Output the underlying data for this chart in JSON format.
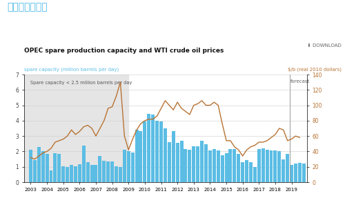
{
  "title_cn": "价格上涨的能力",
  "title_en": "OPEC spare production capacity and WTI crude oil prices",
  "ylabel_left": "spare capacity (million barrels per day)",
  "ylabel_right": "$/b (real 2010 dollars)",
  "download_text": "⬇ DOWNLOAD",
  "annotation": "Spare capacity < 2.5 million barrels per day",
  "forecast_text": "forecast",
  "bar_color": "#5bbde4",
  "line_color": "#b87333",
  "shading_color": "#e5e5e5",
  "background_color": "#ffffff",
  "bar_data_x": [
    2003.0,
    2003.25,
    2003.5,
    2003.75,
    2004.0,
    2004.25,
    2004.5,
    2004.75,
    2005.0,
    2005.25,
    2005.5,
    2005.75,
    2006.0,
    2006.25,
    2006.5,
    2006.75,
    2007.0,
    2007.25,
    2007.5,
    2007.75,
    2008.0,
    2008.25,
    2008.5,
    2008.75,
    2009.0,
    2009.25,
    2009.5,
    2009.75,
    2010.0,
    2010.25,
    2010.5,
    2010.75,
    2011.0,
    2011.25,
    2011.5,
    2011.75,
    2012.0,
    2012.25,
    2012.5,
    2012.75,
    2013.0,
    2013.25,
    2013.5,
    2013.75,
    2014.0,
    2014.25,
    2014.5,
    2014.75,
    2015.0,
    2015.25,
    2015.5,
    2015.75,
    2016.0,
    2016.25,
    2016.5,
    2016.75,
    2017.0,
    2017.25,
    2017.5,
    2017.75,
    2018.0,
    2018.25,
    2018.5,
    2018.75,
    2019.0,
    2019.25,
    2019.5,
    2019.75
  ],
  "bar_data_y": [
    2.1,
    1.45,
    2.3,
    2.0,
    1.85,
    0.75,
    1.9,
    1.85,
    1.05,
    1.0,
    1.1,
    1.05,
    1.15,
    2.4,
    1.3,
    1.1,
    1.1,
    1.7,
    1.4,
    1.35,
    1.35,
    1.05,
    1.0,
    2.1,
    2.0,
    1.95,
    3.4,
    3.3,
    3.95,
    4.45,
    4.4,
    4.0,
    3.95,
    3.5,
    2.6,
    3.3,
    2.55,
    2.7,
    2.15,
    2.1,
    2.35,
    2.35,
    2.7,
    2.45,
    2.05,
    2.15,
    2.05,
    1.75,
    1.9,
    2.15,
    2.15,
    1.85,
    1.3,
    1.45,
    1.3,
    1.0,
    2.15,
    2.2,
    2.1,
    2.05,
    2.05,
    2.0,
    1.5,
    1.85,
    1.1,
    1.2,
    1.25,
    1.2
  ],
  "oil_price_x": [
    2003.0,
    2003.25,
    2003.5,
    2003.75,
    2004.0,
    2004.25,
    2004.5,
    2004.75,
    2005.0,
    2005.25,
    2005.5,
    2005.75,
    2006.0,
    2006.25,
    2006.5,
    2006.75,
    2007.0,
    2007.25,
    2007.5,
    2007.75,
    2008.0,
    2008.25,
    2008.5,
    2008.75,
    2009.0,
    2009.25,
    2009.5,
    2009.75,
    2010.0,
    2010.25,
    2010.5,
    2010.75,
    2011.0,
    2011.25,
    2011.5,
    2011.75,
    2012.0,
    2012.25,
    2012.5,
    2012.75,
    2013.0,
    2013.25,
    2013.5,
    2013.75,
    2014.0,
    2014.25,
    2014.5,
    2014.75,
    2015.0,
    2015.25,
    2015.5,
    2015.75,
    2016.0,
    2016.25,
    2016.5,
    2016.75,
    2017.0,
    2017.25,
    2017.5,
    2017.75,
    2018.0,
    2018.25,
    2018.5,
    2018.75,
    2019.0,
    2019.25,
    2019.5
  ],
  "oil_price_y": [
    32,
    30,
    34,
    38,
    40,
    44,
    52,
    54,
    56,
    60,
    68,
    62,
    66,
    72,
    74,
    70,
    60,
    70,
    80,
    96,
    98,
    112,
    130,
    60,
    42,
    56,
    68,
    76,
    80,
    82,
    82,
    86,
    96,
    106,
    100,
    94,
    104,
    96,
    92,
    88,
    100,
    102,
    106,
    100,
    100,
    104,
    100,
    76,
    54,
    54,
    46,
    42,
    34,
    42,
    46,
    48,
    52,
    52,
    54,
    58,
    62,
    70,
    68,
    54,
    56,
    60,
    58
  ],
  "ylim_left": [
    0,
    7
  ],
  "ylim_right": [
    0,
    140
  ],
  "yticks_left": [
    0,
    1,
    2,
    3,
    4,
    5,
    6,
    7
  ],
  "yticks_right": [
    0,
    20,
    40,
    60,
    80,
    100,
    120,
    140
  ],
  "shaded_region_start": 2002.6,
  "shaded_region_end": 2009.0,
  "forecast_start": 2018.88,
  "xlim": [
    2002.6,
    2019.95
  ]
}
